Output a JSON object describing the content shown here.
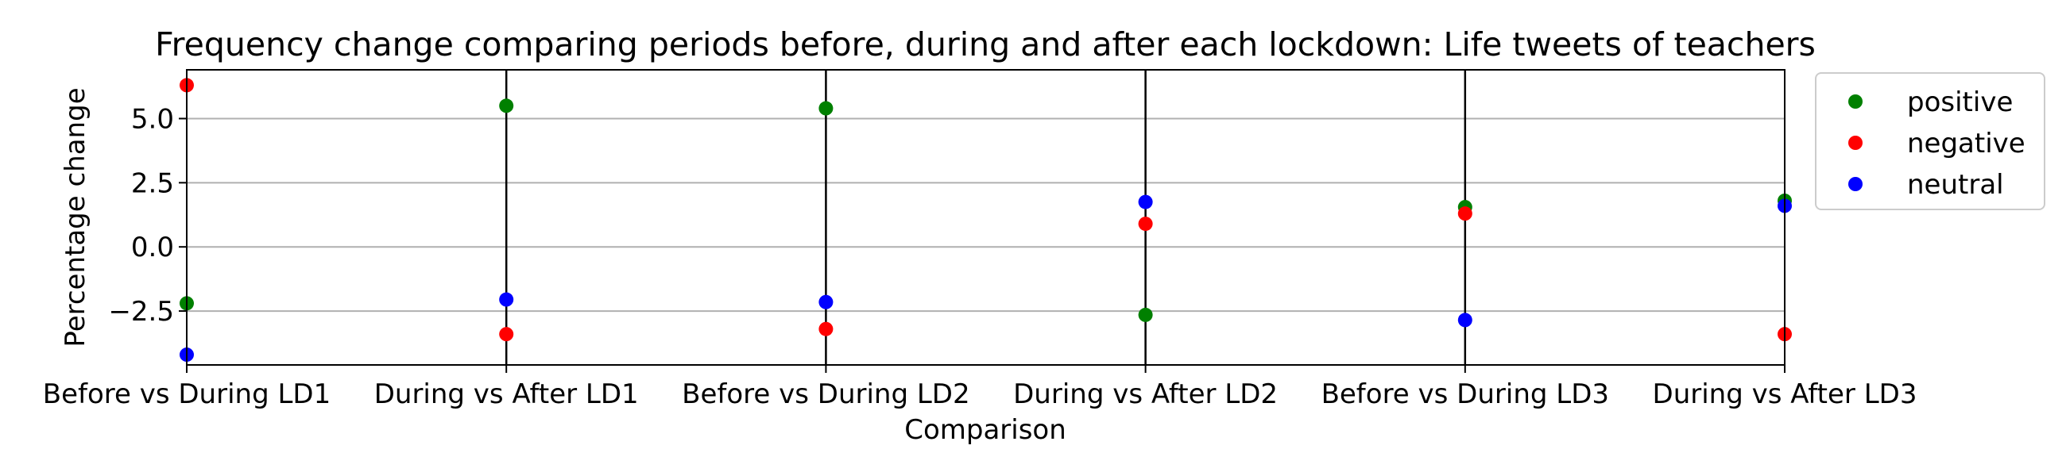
{
  "chart_data": {
    "type": "scatter",
    "title": "Frequency change comparing periods before, during and after each lockdown: Life tweets of teachers",
    "xlabel": "Comparison",
    "ylabel": "Percentage change",
    "categories": [
      "Before vs During LD1",
      "During vs After LD1",
      "Before vs During LD2",
      "During vs After LD2",
      "Before vs During LD3",
      "During vs After LD3"
    ],
    "yticks": [
      "5.0",
      "2.5",
      "0.0",
      "−2.5"
    ],
    "ylim": [
      -4.6,
      6.9
    ],
    "grid": "horizontal",
    "legend_position": "outside-top-right",
    "series": [
      {
        "name": "positive",
        "color": "#008000",
        "values": [
          -2.2,
          5.5,
          5.4,
          -2.65,
          1.55,
          1.8
        ]
      },
      {
        "name": "negative",
        "color": "#ff0000",
        "values": [
          6.3,
          -3.4,
          -3.2,
          0.9,
          1.3,
          -3.4
        ]
      },
      {
        "name": "neutral",
        "color": "#0000ff",
        "values": [
          -4.2,
          -2.05,
          -2.15,
          1.75,
          -2.85,
          1.6
        ]
      }
    ]
  }
}
